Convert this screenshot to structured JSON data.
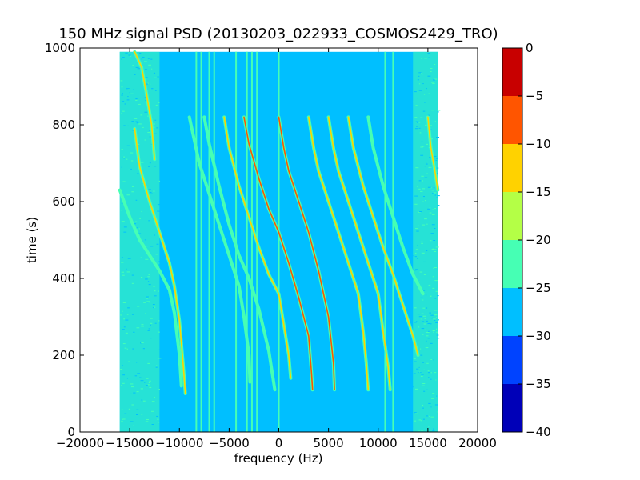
{
  "chart_data": {
    "type": "heatmap",
    "title": "150 MHz signal PSD (20130203_022933_COSMOS2429_TRO)",
    "xlabel": "frequency (Hz)",
    "ylabel": "time (s)",
    "xlim": [
      -20000,
      20000
    ],
    "ylim": [
      0,
      1000
    ],
    "xticks": [
      -20000,
      -15000,
      -10000,
      -5000,
      0,
      5000,
      10000,
      15000,
      20000
    ],
    "xtick_labels": [
      "−20000",
      "−15000",
      "−10000",
      "−5000",
      "0",
      "5000",
      "10000",
      "15000",
      "20000"
    ],
    "yticks": [
      0,
      200,
      400,
      600,
      800,
      1000
    ],
    "ytick_labels": [
      "0",
      "200",
      "400",
      "600",
      "800",
      "1000"
    ],
    "data_extent": {
      "freq": [
        -16000,
        16000
      ],
      "time": [
        0,
        990
      ]
    },
    "background_level": -27.5,
    "colorbar": {
      "levels": [
        -40,
        -35,
        -30,
        -25,
        -20,
        -15,
        -10,
        -5,
        0
      ],
      "tick_labels": [
        "−40",
        "−35",
        "−30",
        "−25",
        "−20",
        "−15",
        "−10",
        "−5",
        "0"
      ],
      "colors": [
        "#0000b8",
        "#0043ff",
        "#00bfff",
        "#46ffb4",
        "#b4ff46",
        "#ffd200",
        "#ff5500",
        "#c80000"
      ]
    },
    "noise_bands": [
      {
        "from": -16000,
        "to": -12000,
        "level": -22.5
      },
      {
        "from": 13500,
        "to": 16000,
        "level": -22.5
      }
    ],
    "vertical_lines": [
      {
        "freq": -8300,
        "level": -22.5
      },
      {
        "freq": -7800,
        "level": -22.5
      },
      {
        "freq": -7000,
        "level": -22.5
      },
      {
        "freq": -6500,
        "level": -22.5
      },
      {
        "freq": -4300,
        "level": -22.5
      },
      {
        "freq": -3200,
        "level": -22.5
      },
      {
        "freq": -2700,
        "level": -22.5
      },
      {
        "freq": -2200,
        "level": -22.5
      },
      {
        "freq": 0,
        "level": -22.5
      },
      {
        "freq": 10700,
        "level": -22.5
      },
      {
        "freq": 11500,
        "level": -22.5
      }
    ],
    "series": [
      {
        "level": -22.5,
        "points": [
          [
            -16000,
            630
          ],
          [
            -15000,
            560
          ],
          [
            -14000,
            500
          ],
          [
            -13000,
            460
          ],
          [
            -12000,
            420
          ],
          [
            -11000,
            370
          ],
          [
            -10500,
            310
          ],
          [
            -10000,
            200
          ],
          [
            -9800,
            120
          ]
        ]
      },
      {
        "level": -12.5,
        "points": [
          [
            -14500,
            790
          ],
          [
            -14000,
            690
          ],
          [
            -13000,
            600
          ],
          [
            -12000,
            520
          ],
          [
            -11000,
            440
          ],
          [
            -10500,
            380
          ],
          [
            -10000,
            290
          ],
          [
            -9600,
            170
          ],
          [
            -9400,
            100
          ]
        ]
      },
      {
        "level": -12.5,
        "points": [
          [
            -14500,
            990
          ],
          [
            -13800,
            950
          ],
          [
            -13300,
            880
          ],
          [
            -12800,
            800
          ],
          [
            -12500,
            710
          ]
        ]
      },
      {
        "level": -22.5,
        "points": [
          [
            -9000,
            820
          ],
          [
            -8500,
            760
          ],
          [
            -8000,
            700
          ],
          [
            -7000,
            620
          ],
          [
            -6000,
            540
          ],
          [
            -5000,
            460
          ],
          [
            -4000,
            380
          ],
          [
            -3500,
            300
          ],
          [
            -3000,
            200
          ],
          [
            -2900,
            130
          ]
        ]
      },
      {
        "level": -22.5,
        "points": [
          [
            -7500,
            820
          ],
          [
            -7000,
            750
          ],
          [
            -6000,
            640
          ],
          [
            -5000,
            540
          ],
          [
            -4000,
            460
          ],
          [
            -3000,
            400
          ],
          [
            -2000,
            320
          ],
          [
            -1000,
            210
          ],
          [
            -400,
            110
          ]
        ]
      },
      {
        "level": -12.5,
        "points": [
          [
            -5500,
            820
          ],
          [
            -5000,
            740
          ],
          [
            -4000,
            640
          ],
          [
            -3000,
            560
          ],
          [
            -2000,
            480
          ],
          [
            -1000,
            410
          ],
          [
            0,
            360
          ],
          [
            500,
            280
          ],
          [
            1000,
            200
          ],
          [
            1200,
            140
          ]
        ]
      },
      {
        "level": -7.5,
        "points": [
          [
            -3500,
            820
          ],
          [
            -3000,
            750
          ],
          [
            -2000,
            660
          ],
          [
            -1000,
            580
          ],
          [
            0,
            520
          ],
          [
            1000,
            440
          ],
          [
            2000,
            350
          ],
          [
            3000,
            250
          ],
          [
            3300,
            150
          ],
          [
            3400,
            110
          ]
        ]
      },
      {
        "level": -7.5,
        "points": [
          [
            0,
            820
          ],
          [
            500,
            740
          ],
          [
            1000,
            680
          ],
          [
            2000,
            600
          ],
          [
            3000,
            520
          ],
          [
            4000,
            420
          ],
          [
            5000,
            300
          ],
          [
            5500,
            180
          ],
          [
            5600,
            110
          ]
        ]
      },
      {
        "level": -12.5,
        "points": [
          [
            3000,
            820
          ],
          [
            3500,
            740
          ],
          [
            4000,
            680
          ],
          [
            5000,
            600
          ],
          [
            6000,
            520
          ],
          [
            7000,
            440
          ],
          [
            8000,
            360
          ],
          [
            8500,
            260
          ],
          [
            8800,
            180
          ],
          [
            9000,
            110
          ]
        ]
      },
      {
        "level": -12.5,
        "points": [
          [
            5000,
            820
          ],
          [
            5500,
            740
          ],
          [
            6000,
            680
          ],
          [
            7000,
            600
          ],
          [
            8000,
            520
          ],
          [
            9000,
            440
          ],
          [
            10000,
            360
          ],
          [
            10500,
            260
          ],
          [
            11000,
            170
          ],
          [
            11200,
            110
          ]
        ]
      },
      {
        "level": -12.5,
        "points": [
          [
            7000,
            820
          ],
          [
            7500,
            740
          ],
          [
            8500,
            640
          ],
          [
            9500,
            560
          ],
          [
            10500,
            480
          ],
          [
            11500,
            410
          ],
          [
            12500,
            330
          ],
          [
            13500,
            250
          ],
          [
            14000,
            200
          ]
        ]
      },
      {
        "level": -22.5,
        "points": [
          [
            9000,
            820
          ],
          [
            9500,
            740
          ],
          [
            10500,
            640
          ],
          [
            11500,
            560
          ],
          [
            12500,
            480
          ],
          [
            13500,
            410
          ],
          [
            14500,
            360
          ]
        ]
      },
      {
        "level": -12.5,
        "points": [
          [
            15000,
            820
          ],
          [
            15300,
            740
          ],
          [
            15700,
            680
          ],
          [
            16000,
            630
          ]
        ]
      }
    ]
  }
}
